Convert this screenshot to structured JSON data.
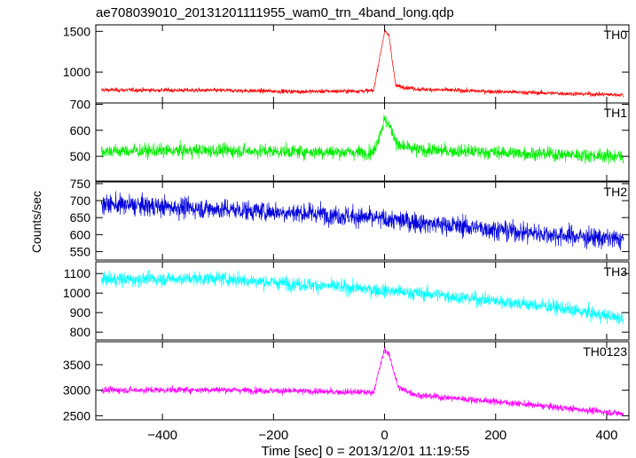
{
  "title": "ae708039010_20131201111955_wam0_trn_4band_long.qdp",
  "chart_data": {
    "type": "line",
    "title": "ae708039010_20131201111955_wam0_trn_4band_long.qdp",
    "xlabel": "Time [sec] 0 = 2013/12/01 11:19:55",
    "ylabel": "Counts/sec",
    "xlim": [
      -520,
      440
    ],
    "x_ticks": [
      -400,
      -200,
      0,
      200,
      400
    ],
    "x_tick_labels": [
      "−400",
      "−200",
      "0",
      "200",
      "400"
    ],
    "grid": false,
    "legend": "none",
    "panels": [
      {
        "name": "TH0",
        "color": "#ff0000",
        "ylim": [
          620,
          1580
        ],
        "y_ticks": [
          1000,
          1500
        ],
        "y_tick_labels": [
          "1000",
          "1500"
        ],
        "trend": [
          [
            -510,
            780
          ],
          [
            -300,
            775
          ],
          [
            -150,
            760
          ],
          [
            -20,
            770
          ],
          [
            0,
            1500
          ],
          [
            8,
            1450
          ],
          [
            20,
            830
          ],
          [
            60,
            790
          ],
          [
            150,
            770
          ],
          [
            300,
            740
          ],
          [
            430,
            720
          ]
        ],
        "noise": 22
      },
      {
        "name": "TH1",
        "color": "#00ee00",
        "ylim": [
          405,
          705
        ],
        "y_ticks": [
          500,
          600,
          700
        ],
        "y_tick_labels": [
          "500",
          "600",
          "700"
        ],
        "trend": [
          [
            -510,
            520
          ],
          [
            -300,
            522
          ],
          [
            -150,
            518
          ],
          [
            -20,
            515
          ],
          [
            0,
            640
          ],
          [
            8,
            620
          ],
          [
            25,
            540
          ],
          [
            60,
            525
          ],
          [
            200,
            515
          ],
          [
            430,
            500
          ]
        ],
        "noise": 22
      },
      {
        "name": "TH2",
        "color": "#0000dd",
        "ylim": [
          525,
          755
        ],
        "y_ticks": [
          550,
          600,
          650,
          700,
          750
        ],
        "y_tick_labels": [
          "550",
          "600",
          "650",
          "700",
          "750"
        ],
        "trend": [
          [
            -510,
            690
          ],
          [
            -300,
            675
          ],
          [
            -100,
            660
          ],
          [
            100,
            630
          ],
          [
            300,
            600
          ],
          [
            430,
            585
          ]
        ],
        "noise": 25
      },
      {
        "name": "TH3",
        "color": "#00ffff",
        "ylim": [
          760,
          1160
        ],
        "y_ticks": [
          800,
          900,
          1000,
          1100
        ],
        "y_tick_labels": [
          "800",
          "900",
          "1000",
          "1100"
        ],
        "trend": [
          [
            -510,
            1070
          ],
          [
            -300,
            1075
          ],
          [
            -100,
            1035
          ],
          [
            100,
            990
          ],
          [
            300,
            930
          ],
          [
            430,
            870
          ]
        ],
        "noise": 30
      },
      {
        "name": "TH0123",
        "color": "#ff00ff",
        "ylim": [
          2420,
          3950
        ],
        "y_ticks": [
          2500,
          3000,
          3500
        ],
        "y_tick_labels": [
          "2500",
          "3000",
          "3500"
        ],
        "trend": [
          [
            -510,
            3000
          ],
          [
            -300,
            3010
          ],
          [
            -100,
            2970
          ],
          [
            -20,
            2960
          ],
          [
            0,
            3800
          ],
          [
            8,
            3700
          ],
          [
            25,
            3050
          ],
          [
            60,
            2900
          ],
          [
            200,
            2780
          ],
          [
            430,
            2540
          ]
        ],
        "noise": 55
      }
    ]
  }
}
